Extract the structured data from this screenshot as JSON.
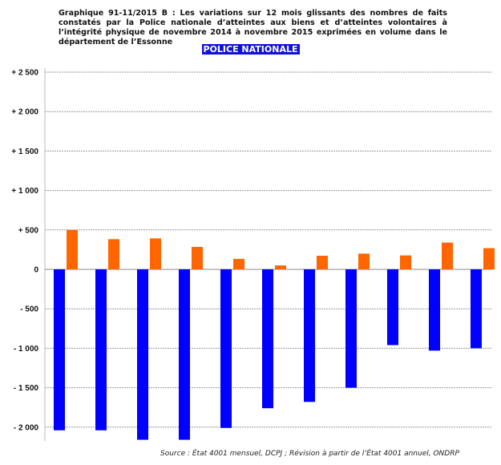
{
  "chart_data": {
    "type": "bar",
    "title": "Graphique 91-11/2015 B : Les variations sur 12 mois glissants des nombres de faits constatés par la Police nationale d’atteintes aux biens et d’atteintes volontaires à l’intégrité physique de novembre 2014 à novembre 2015 exprimées en volume dans le département de l’Essonne",
    "subtitle": "POLICE NATIONALE",
    "source": "Source : État 4001 mensuel, DCPJ ; Révision à partir de l’État 4001 annuel, ONDRP",
    "xlabel": "",
    "ylabel": "",
    "ylim": [
      -2200,
      2500
    ],
    "yticks": [
      2500,
      2000,
      1500,
      1000,
      500,
      0,
      -500,
      -1000,
      -1500,
      -2000
    ],
    "ytick_labels": [
      "+ 2 500",
      "+ 2 000",
      "+ 1 500",
      "+ 1 000",
      "+ 500",
      "0",
      "- 500",
      "- 1 000",
      "- 1 500",
      "- 2 000"
    ],
    "grid": true,
    "series": [
      {
        "name": "atteintes aux biens",
        "color": "#0000ff",
        "values": [
          -2040,
          -2040,
          -2160,
          -2160,
          -2010,
          -1760,
          -1680,
          -1500,
          -960,
          -1030,
          -1000
        ]
      },
      {
        "name": "atteintes volontaires à l'intégrité physique",
        "color": "#ff6600",
        "values": [
          500,
          383,
          393,
          285,
          133,
          50,
          173,
          200,
          177,
          340,
          269
        ]
      }
    ]
  }
}
